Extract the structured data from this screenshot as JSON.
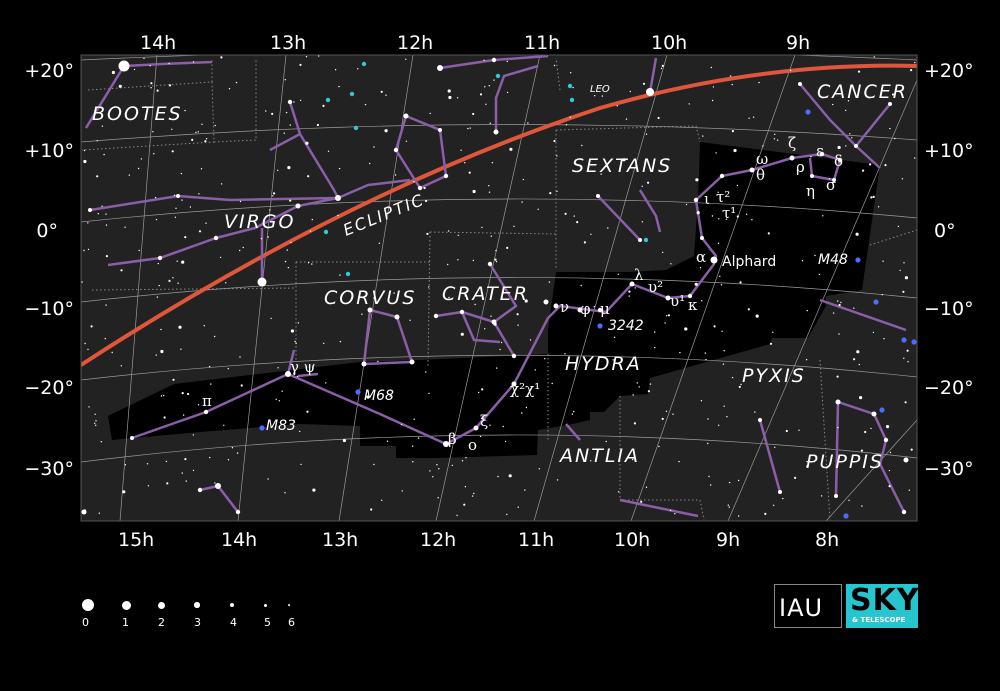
{
  "ra_top": [
    "14h",
    "13h",
    "12h",
    "11h",
    "10h",
    "9h"
  ],
  "ra_bottom": [
    "15h",
    "14h",
    "13h",
    "12h",
    "11h",
    "10h",
    "9h",
    "8h"
  ],
  "dec_left": [
    "+20°",
    "+10°",
    "0°",
    "−10°",
    "−20°",
    "−30°"
  ],
  "dec_right": [
    "+20°",
    "+10°",
    "0°",
    "−10°",
    "−20°",
    "−30°"
  ],
  "constellations": {
    "bootes": "BOOTES",
    "virgo": "VIRGO",
    "corvus": "CORVUS",
    "crater": "CRATER",
    "sextans": "SEXTANS",
    "hydra": "HYDRA",
    "antlia": "ANTLIA",
    "pyxis": "PYXIS",
    "puppis": "PUPPIS",
    "cancer": "CANCER",
    "leo": "LEO"
  },
  "ecliptic_label": "ECLIPTIC",
  "objects": {
    "m48": "M48",
    "m68": "M68",
    "m83": "M83",
    "ngc3242": "3242",
    "alphard": "Alphard"
  },
  "greek": {
    "alpha": "α",
    "omega": "ω",
    "theta": "θ",
    "zeta": "ζ",
    "epsilon": "ε",
    "rho": "ρ",
    "delta": "δ",
    "eta": "η",
    "sigma": "σ",
    "iota": "ι",
    "tau2": "τ²",
    "tau1": "τ¹",
    "lambda": "λ",
    "upsilon2": "υ²",
    "upsilon1": "υ¹",
    "kappa": "κ",
    "nu": "ν",
    "phi": "φ",
    "mu": "μ",
    "chi2chi1": "χ²χ¹",
    "xi": "ξ",
    "beta": "β",
    "omicron": "ο",
    "pi": "π",
    "gammapsi": "γ ψ"
  },
  "legend": [
    {
      "mag": "0"
    },
    {
      "mag": "1"
    },
    {
      "mag": "2"
    },
    {
      "mag": "3"
    },
    {
      "mag": "4"
    },
    {
      "mag": "5"
    },
    {
      "mag": "6"
    }
  ],
  "logos": {
    "iau": "IAU",
    "sky": "SKY",
    "snt": "& TELESCOPE"
  },
  "colors": {
    "sky": "#222222",
    "highlight": "#000000",
    "grid": "#9a9a9a",
    "stick": "#8a5fa8",
    "ecliptic": "#e0563a",
    "cyan": "#35c8d6",
    "blue": "#4a6cff"
  }
}
